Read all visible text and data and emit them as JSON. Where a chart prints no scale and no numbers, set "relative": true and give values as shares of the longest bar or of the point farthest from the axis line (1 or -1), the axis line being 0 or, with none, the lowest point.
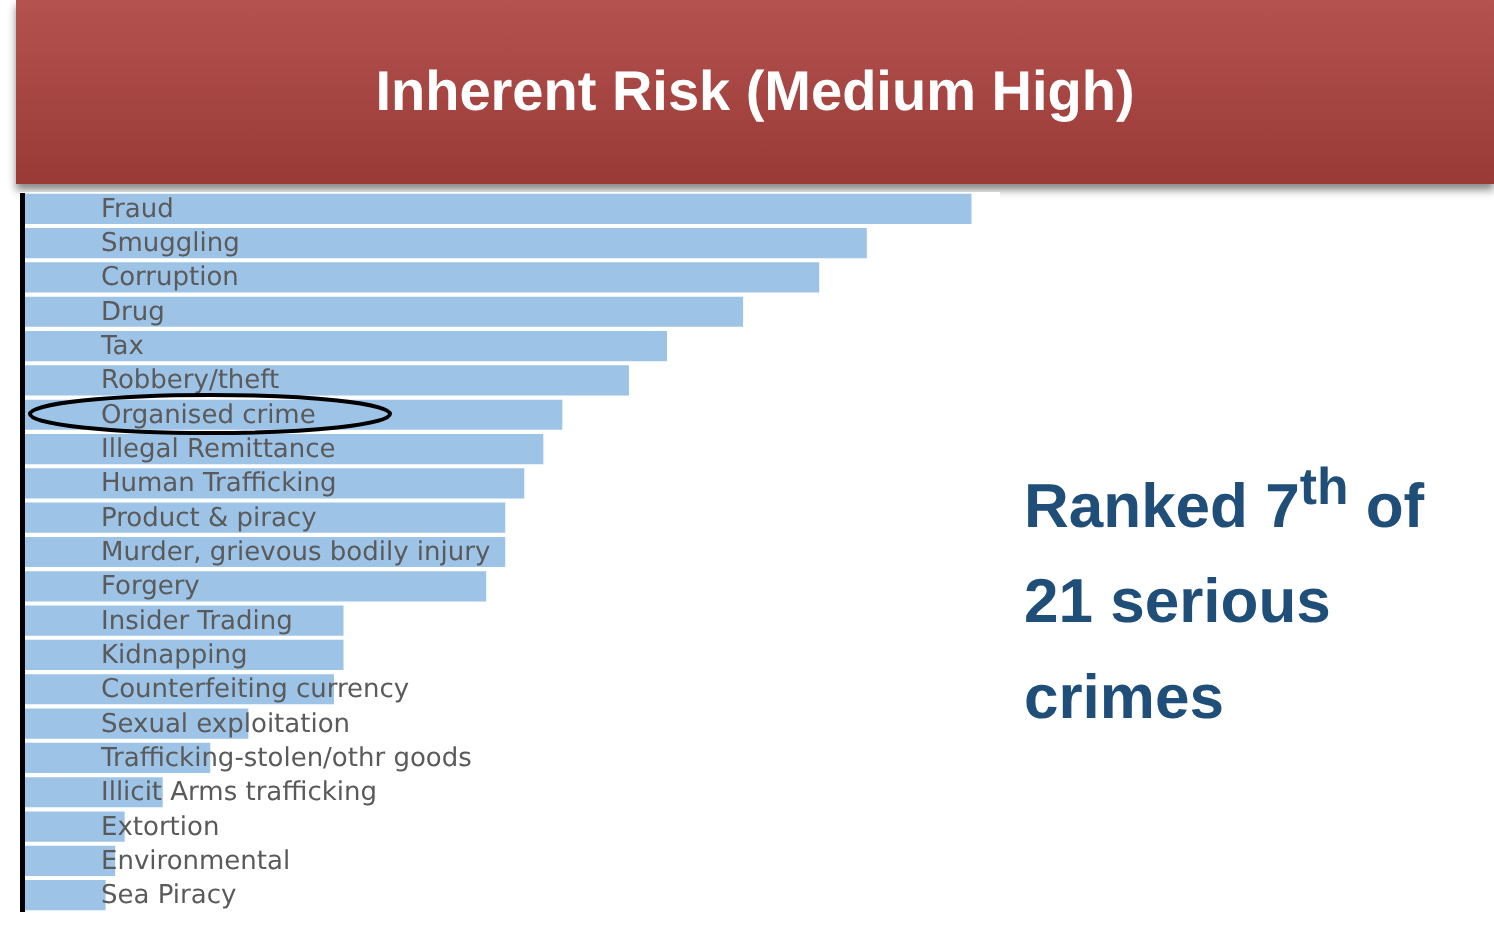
{
  "chart_data": {
    "type": "bar",
    "orientation": "horizontal",
    "relative": true,
    "title": "Inherent Risk (Medium High)",
    "categories": [
      "Fraud",
      "Smuggling",
      "Corruption",
      "Drug",
      "Tax",
      "Robbery/theft",
      "Organised crime",
      "Illegal Remittance",
      "Human Trafficking",
      "Product & piracy",
      "Murder, grievous bodily injury",
      "Forgery",
      "Insider Trading",
      "Kidnapping",
      "Counterfeiting currency",
      "Sexual exploitation",
      "Trafficking-stolen/othr goods",
      "Illicit Arms trafficking",
      "Extortion",
      "Environmental",
      "Sea Piracy"
    ],
    "values": [
      1,
      0.89,
      0.84,
      0.76,
      0.68,
      0.64,
      0.57,
      0.55,
      0.53,
      0.51,
      0.51,
      0.49,
      0.34,
      0.34,
      0.33,
      0.24,
      0.2,
      0.15,
      0.11,
      0.1,
      0.09
    ],
    "color": "#9dc3e6",
    "annotations": [
      "Ranked 7$^{th}$ of 21 serious crimes"
    ]
  }
}
